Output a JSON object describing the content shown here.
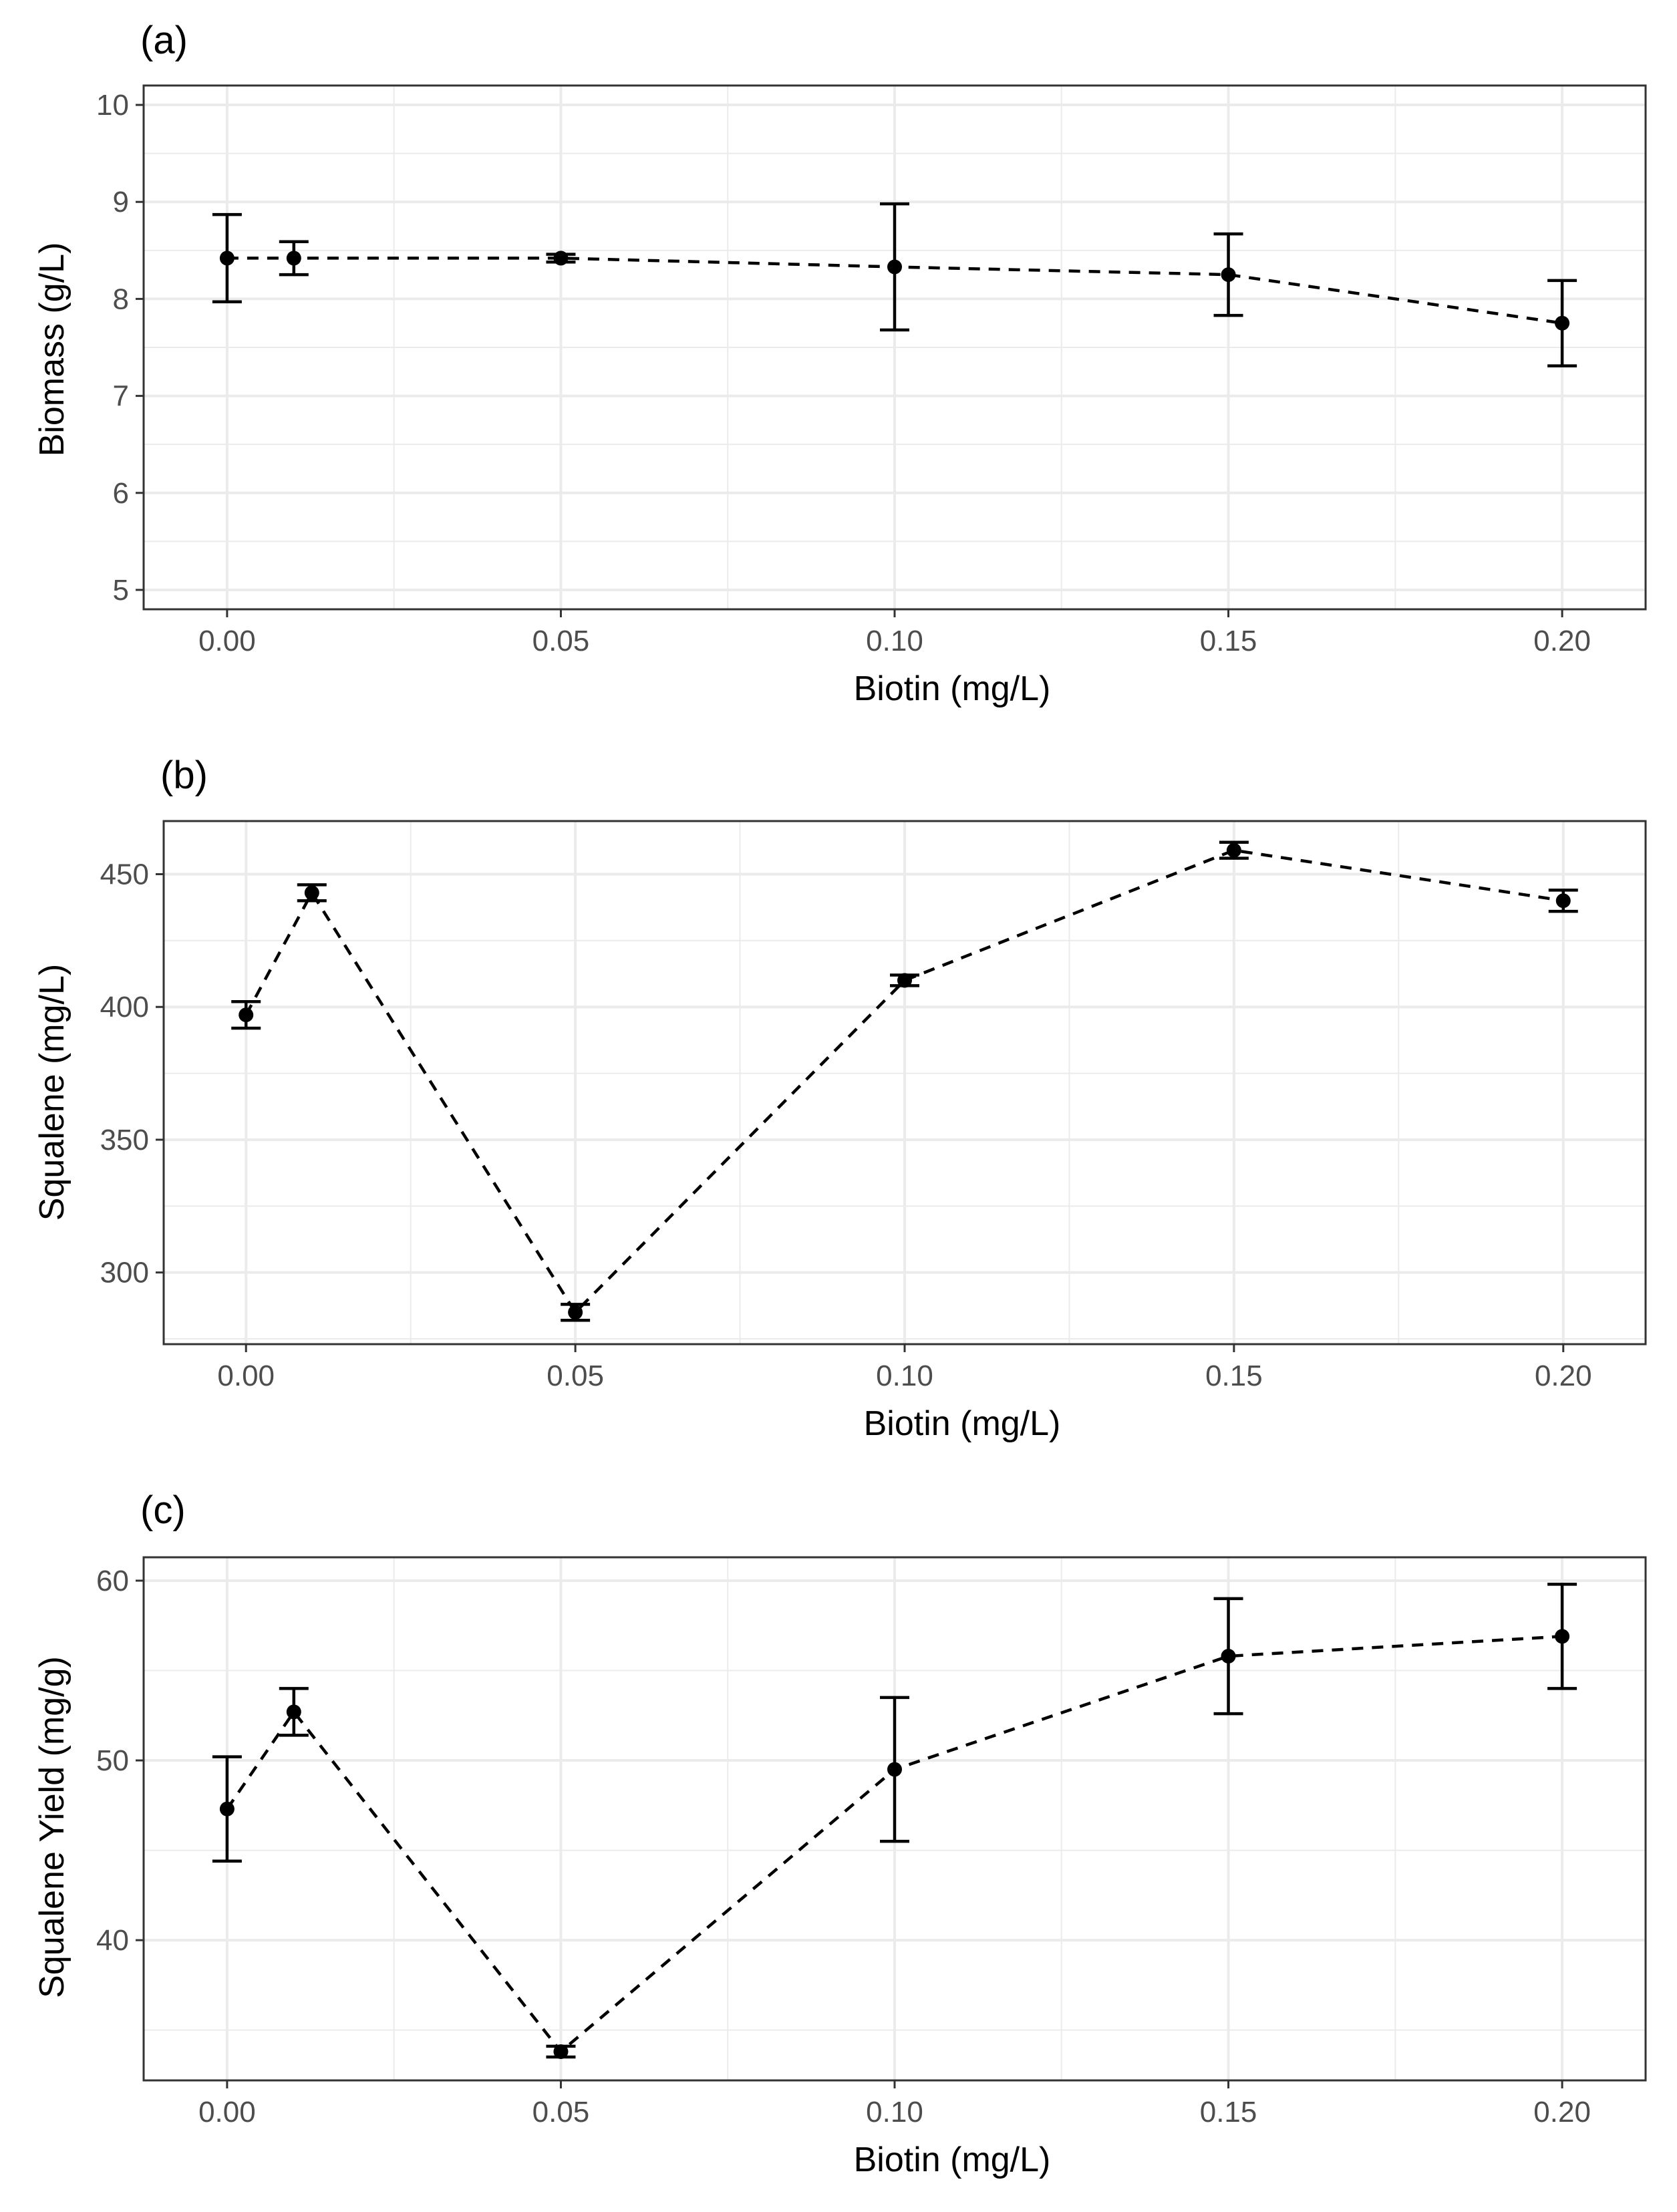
{
  "figure": {
    "style": {
      "point_color": "#000000",
      "line_color": "#000000",
      "grid_color": "#ebebeb",
      "frame_color": "#333333",
      "tick_label_color": "#4d4d4d"
    }
  },
  "chart_data": [
    {
      "type": "line",
      "panel_label": "(a)",
      "title": "",
      "xlabel": "Biotin (mg/L)",
      "ylabel": "Biomass (g/L)",
      "line_style": "dashed",
      "error_bars": true,
      "xlim": [
        -0.0125,
        0.2125
      ],
      "ylim": [
        4.8,
        10.2
      ],
      "x_ticks": [
        0.0,
        0.05,
        0.1,
        0.15,
        0.2
      ],
      "x_tick_labels": [
        "0.00",
        "0.05",
        "0.10",
        "0.15",
        "0.20"
      ],
      "y_ticks": [
        5,
        6,
        7,
        8,
        9,
        10
      ],
      "y_tick_labels": [
        "5",
        "6",
        "7",
        "8",
        "9",
        "10"
      ],
      "x": [
        0.0,
        0.01,
        0.05,
        0.1,
        0.15,
        0.2
      ],
      "y": [
        8.42,
        8.42,
        8.42,
        8.33,
        8.25,
        7.75
      ],
      "yerr": [
        0.45,
        0.17,
        0.04,
        0.65,
        0.42,
        0.44
      ]
    },
    {
      "type": "line",
      "panel_label": "(b)",
      "title": "",
      "xlabel": "Biotin (mg/L)",
      "ylabel": "Squalene (mg/L)",
      "line_style": "dashed",
      "error_bars": true,
      "xlim": [
        -0.0125,
        0.2125
      ],
      "ylim": [
        273,
        470
      ],
      "x_ticks": [
        0.0,
        0.05,
        0.1,
        0.15,
        0.2
      ],
      "x_tick_labels": [
        "0.00",
        "0.05",
        "0.10",
        "0.15",
        "0.20"
      ],
      "y_ticks": [
        300,
        350,
        400,
        450
      ],
      "y_tick_labels": [
        "300",
        "350",
        "400",
        "450"
      ],
      "x": [
        0.0,
        0.01,
        0.05,
        0.1,
        0.15,
        0.2
      ],
      "y": [
        397,
        443,
        285,
        410,
        459,
        440
      ],
      "yerr": [
        5,
        3,
        3,
        2,
        3,
        4
      ]
    },
    {
      "type": "line",
      "panel_label": "(c)",
      "title": "",
      "xlabel": "Biotin (mg/L)",
      "ylabel": "Squalene Yield (mg/g)",
      "line_style": "dashed",
      "error_bars": true,
      "xlim": [
        -0.0125,
        0.2125
      ],
      "ylim": [
        32.2,
        61.3
      ],
      "x_ticks": [
        0.0,
        0.05,
        0.1,
        0.15,
        0.2
      ],
      "x_tick_labels": [
        "0.00",
        "0.05",
        "0.10",
        "0.15",
        "0.20"
      ],
      "y_ticks": [
        40,
        50,
        60
      ],
      "y_tick_labels": [
        "40",
        "50",
        "60"
      ],
      "x": [
        0.0,
        0.01,
        0.05,
        0.1,
        0.15,
        0.2
      ],
      "y": [
        47.3,
        52.7,
        33.8,
        49.5,
        55.8,
        56.9
      ],
      "yerr": [
        2.9,
        1.3,
        0.3,
        4.0,
        3.2,
        2.9
      ]
    }
  ]
}
